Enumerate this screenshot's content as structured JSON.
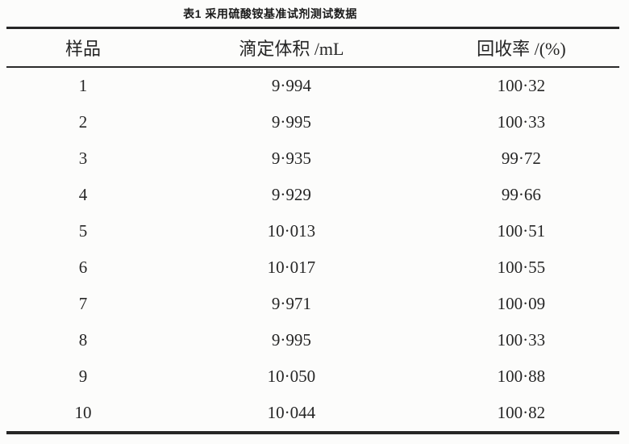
{
  "table": {
    "title": "表1 采用硫酸铵基准试剂测试数据",
    "columns": [
      "样品",
      "滴定体积 /mL",
      "回收率 /(%)"
    ],
    "rows": [
      [
        "1",
        "9·994",
        "100·32"
      ],
      [
        "2",
        "9·995",
        "100·33"
      ],
      [
        "3",
        "9·935",
        "99·72"
      ],
      [
        "4",
        "9·929",
        "99·66"
      ],
      [
        "5",
        "10·013",
        "100·51"
      ],
      [
        "6",
        "10·017",
        "100·55"
      ],
      [
        "7",
        "9·971",
        "100·09"
      ],
      [
        "8",
        "9·995",
        "100·33"
      ],
      [
        "9",
        "10·050",
        "100·88"
      ],
      [
        "10",
        "10·044",
        "100·82"
      ]
    ],
    "style": {
      "rule_color": "#262626",
      "background": "#fcfcfb"
    }
  }
}
